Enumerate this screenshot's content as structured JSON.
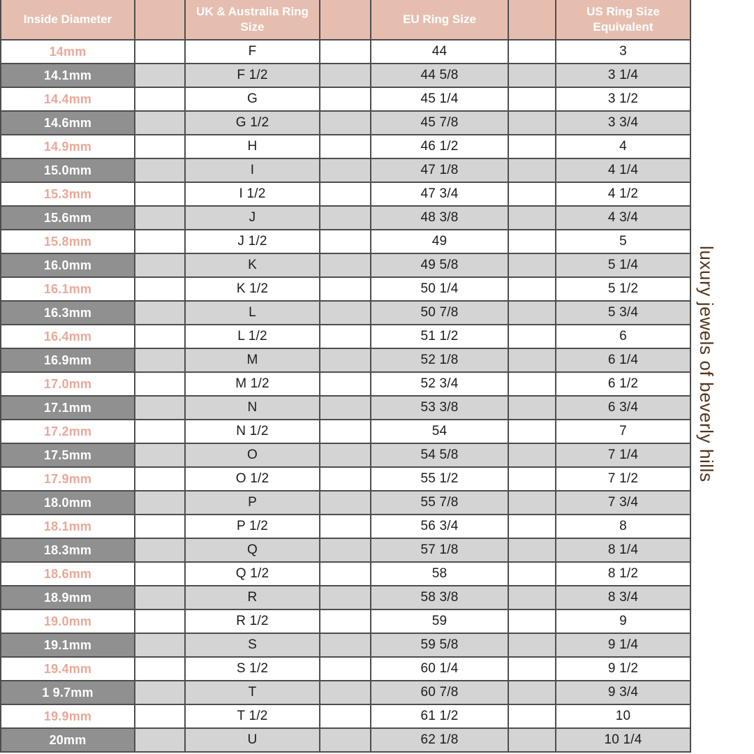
{
  "brand": {
    "text": "luxury jewels of beverly hills"
  },
  "table": {
    "headers": {
      "diameter": "Inside Diameter",
      "uk": "UK & Australia Ring Size",
      "eu": "EU Ring Size",
      "us": "US Ring Size Equivalent"
    },
    "rows": [
      [
        "14mm",
        "F",
        "44",
        "3"
      ],
      [
        "14.1mm",
        "F 1/2",
        "44 5/8",
        "3 1/4"
      ],
      [
        "14.4mm",
        "G",
        "45 1/4",
        "3 1/2"
      ],
      [
        "14.6mm",
        "G 1/2",
        "45 7/8",
        "3 3/4"
      ],
      [
        "14.9mm",
        "H",
        "46 1/2",
        "4"
      ],
      [
        "15.0mm",
        "I",
        "47 1/8",
        "4 1/4"
      ],
      [
        "15.3mm",
        "I 1/2",
        "47 3/4",
        "4 1/2"
      ],
      [
        "15.6mm",
        "J",
        "48 3/8",
        "4 3/4"
      ],
      [
        "15.8mm",
        "J 1/2",
        "49",
        "5"
      ],
      [
        "16.0mm",
        "K",
        "49 5/8",
        "5 1/4"
      ],
      [
        "16.1mm",
        "K 1/2",
        "50 1/4",
        "5 1/2"
      ],
      [
        "16.3mm",
        "L",
        "50 7/8",
        "5 3/4"
      ],
      [
        "16.4mm",
        "L 1/2",
        "51 1/2",
        "6"
      ],
      [
        "16.9mm",
        "M",
        "52 1/8",
        "6 1/4"
      ],
      [
        "17.0mm",
        "M 1/2",
        "52 3/4",
        "6 1/2"
      ],
      [
        "17.1mm",
        "N",
        "53 3/8",
        "6 3/4"
      ],
      [
        "17.2mm",
        "N 1/2",
        "54",
        "7"
      ],
      [
        "17.5mm",
        "O",
        "54 5/8",
        "7 1/4"
      ],
      [
        "17.9mm",
        "O 1/2",
        "55 1/2",
        "7 1/2"
      ],
      [
        "18.0mm",
        "P",
        "55 7/8",
        "7 3/4"
      ],
      [
        "18.1mm",
        "P 1/2",
        "56 3/4",
        "8"
      ],
      [
        "18.3mm",
        "Q",
        "57 1/8",
        "8 1/4"
      ],
      [
        "18.6mm",
        "Q 1/2",
        "58",
        "8 1/2"
      ],
      [
        "18.9mm",
        "R",
        "58 3/8",
        "8 3/4"
      ],
      [
        "19.0mm",
        "R 1/2",
        "59",
        "9"
      ],
      [
        "19.1mm",
        "S",
        "59 5/8",
        "9 1/4"
      ],
      [
        "19.4mm",
        "S 1/2",
        "60 1/4",
        "9 1/2"
      ],
      [
        "1 9.7mm",
        "T",
        "60 7/8",
        "9 3/4"
      ],
      [
        "19.9mm",
        "T 1/2",
        "61 1/2",
        "10"
      ],
      [
        "20mm",
        "U",
        "62 1/8",
        "10 1/4"
      ]
    ]
  },
  "colors": {
    "header_bg": "#e6beb0",
    "header_text": "#ffffff",
    "diameter_pink_text": "#e9a898",
    "diameter_dark_bg": "#909090",
    "stripe_light_gray": "#d4d4d4",
    "border": "#4d4d4d",
    "brand_text_color": "#53351b"
  }
}
